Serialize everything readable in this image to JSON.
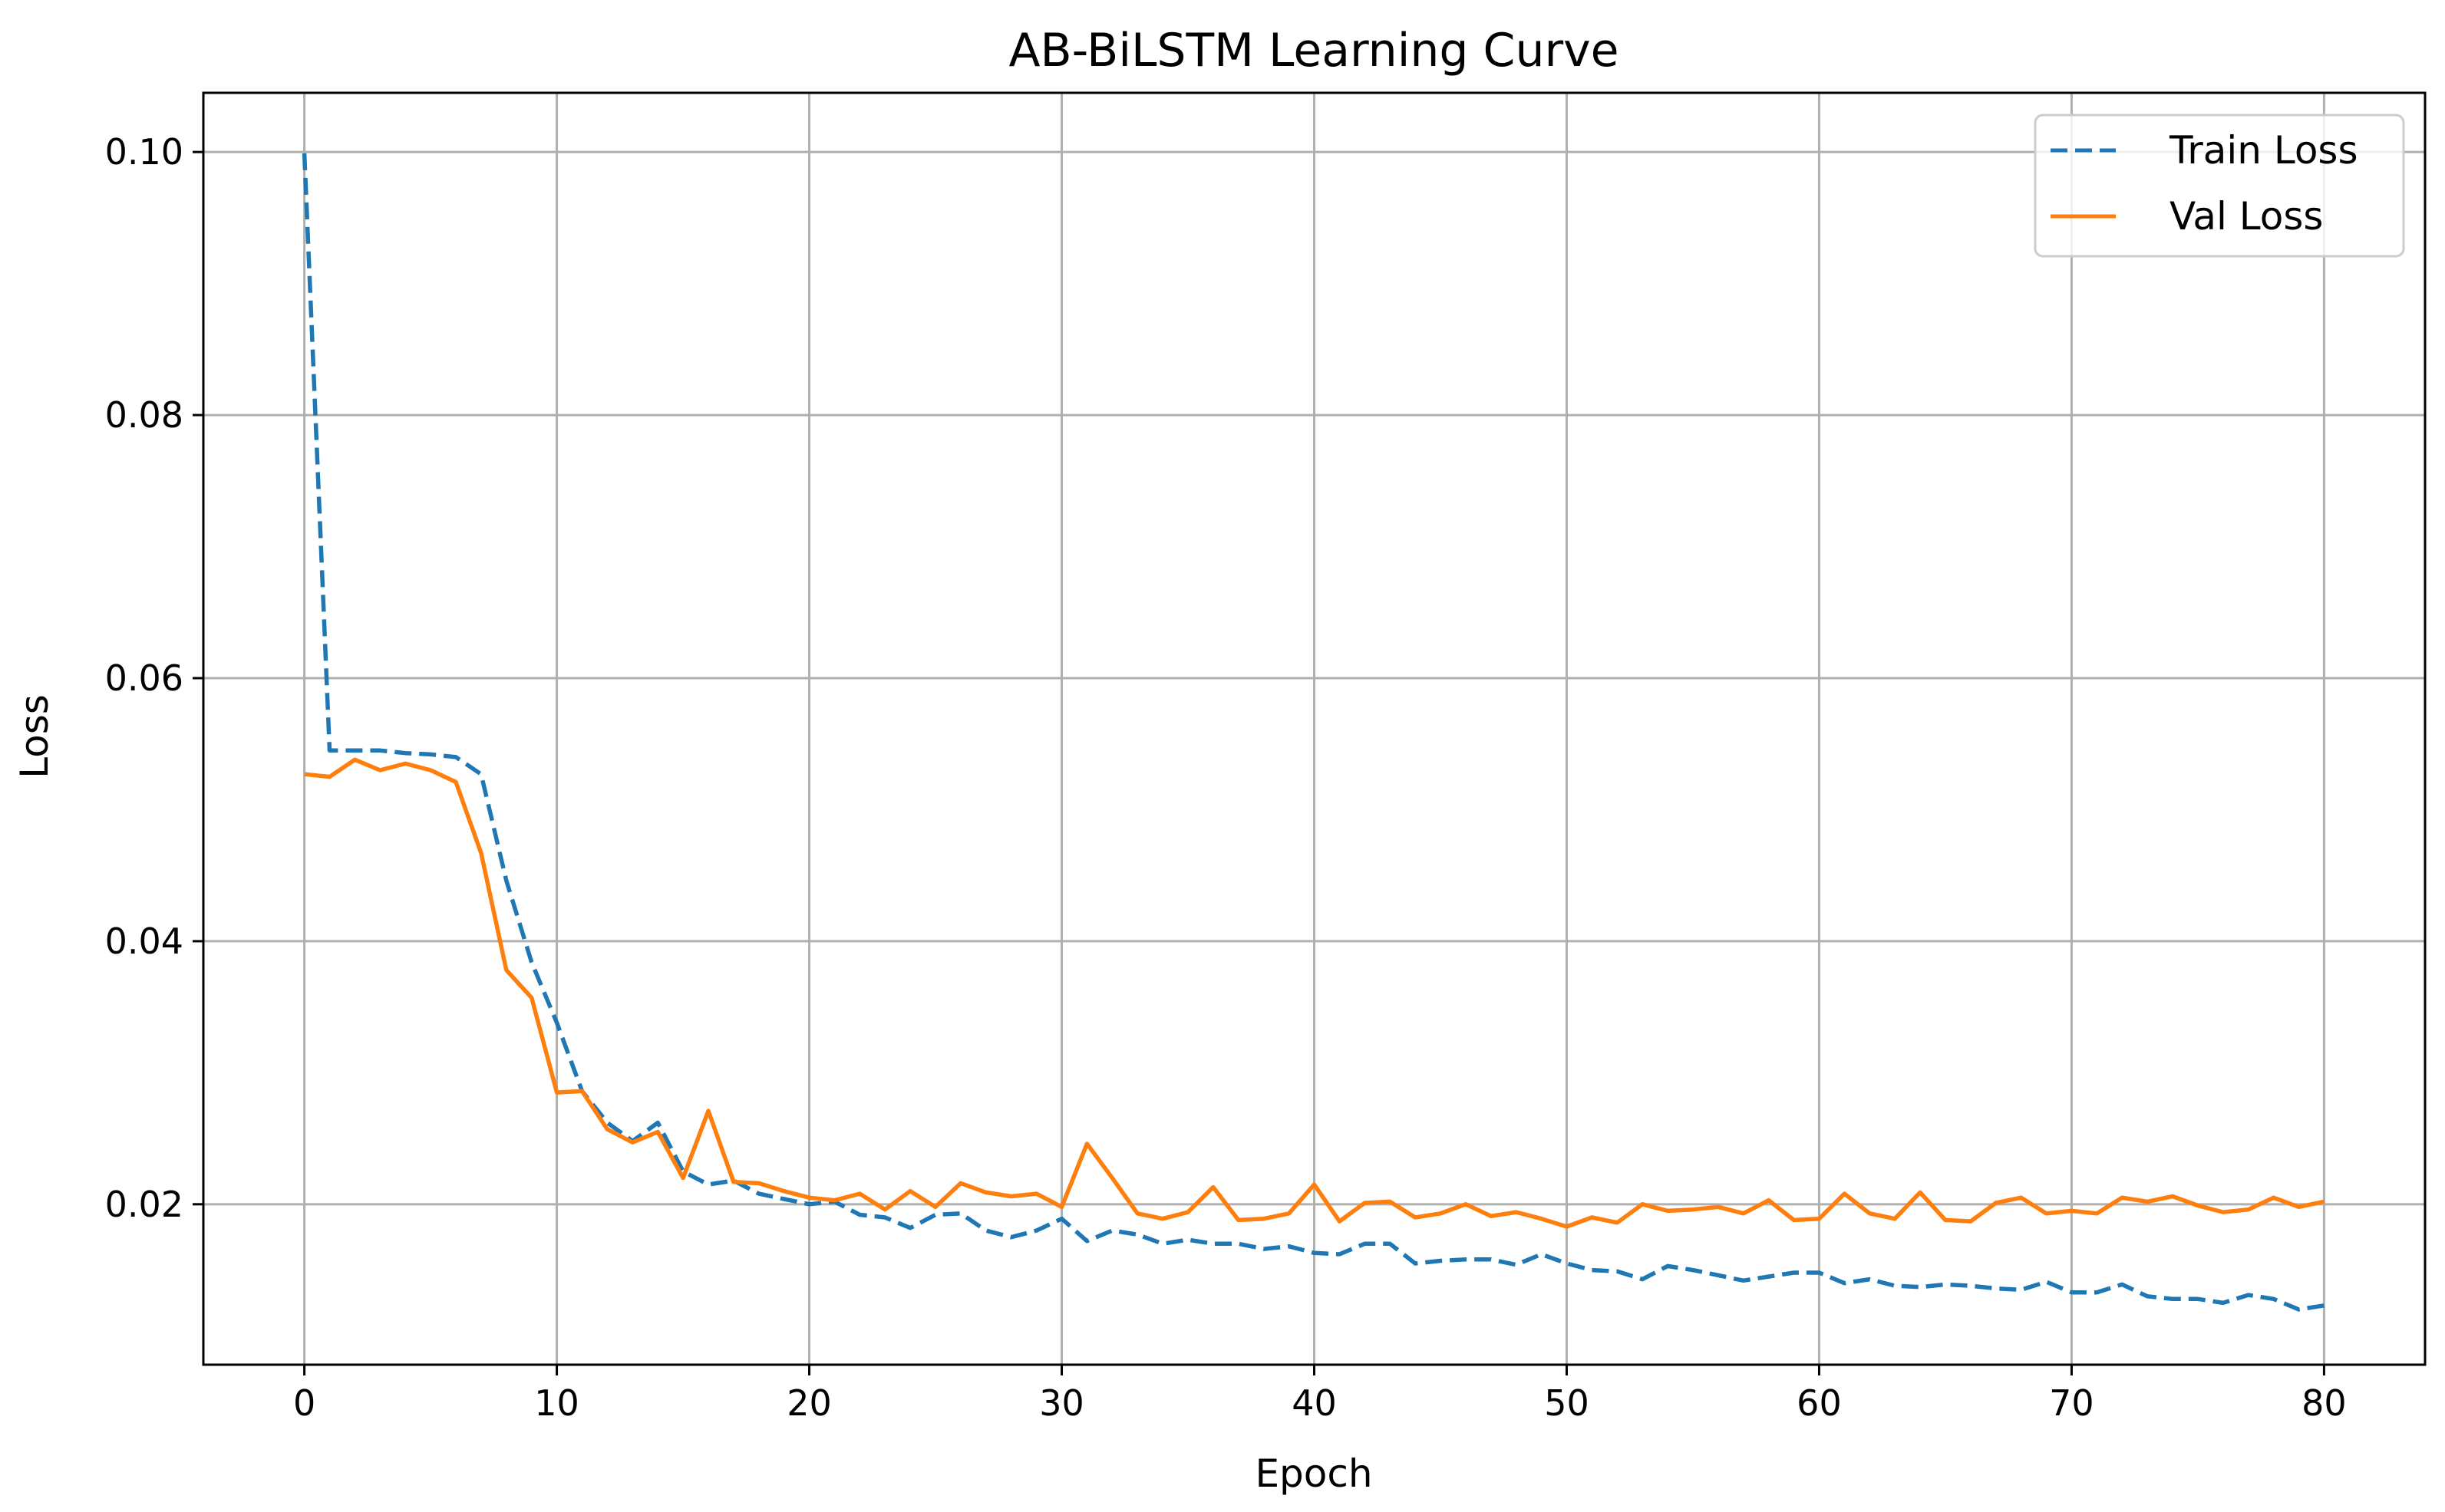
{
  "chart_data": {
    "type": "line",
    "title": "AB-BiLSTM Learning Curve",
    "xlabel": "Epoch",
    "ylabel": "Loss",
    "xlim": [
      -4,
      84
    ],
    "ylim": [
      0.0078,
      0.1045
    ],
    "xticks": [
      0,
      10,
      20,
      30,
      40,
      50,
      60,
      70,
      80
    ],
    "xtick_labels": [
      "0",
      "10",
      "20",
      "30",
      "40",
      "50",
      "60",
      "70",
      "80"
    ],
    "yticks": [
      0.02,
      0.04,
      0.06,
      0.08,
      0.1
    ],
    "ytick_labels": [
      "0.02",
      "0.04",
      "0.06",
      "0.08",
      "0.10"
    ],
    "grid": true,
    "legend_position": "top-right",
    "x": [
      0,
      1,
      2,
      3,
      4,
      5,
      6,
      7,
      8,
      9,
      10,
      11,
      12,
      13,
      14,
      15,
      16,
      17,
      18,
      19,
      20,
      21,
      22,
      23,
      24,
      25,
      26,
      27,
      28,
      29,
      30,
      31,
      32,
      33,
      34,
      35,
      36,
      37,
      38,
      39,
      40,
      41,
      42,
      43,
      44,
      45,
      46,
      47,
      48,
      49,
      50,
      51,
      52,
      53,
      54,
      55,
      56,
      57,
      58,
      59,
      60,
      61,
      62,
      63,
      64,
      65,
      66,
      67,
      68,
      69,
      70,
      71,
      72,
      73,
      74,
      75,
      76,
      77,
      78,
      79,
      80
    ],
    "series": [
      {
        "name": "Train Loss",
        "color": "#1f77b4",
        "style": "dashed",
        "values": [
          0.0999,
          0.0545,
          0.0545,
          0.0545,
          0.0543,
          0.0542,
          0.054,
          0.0527,
          0.0446,
          0.0384,
          0.0338,
          0.0286,
          0.0262,
          0.0248,
          0.0262,
          0.0225,
          0.0215,
          0.0218,
          0.0208,
          0.0204,
          0.02,
          0.0202,
          0.0192,
          0.019,
          0.0182,
          0.0192,
          0.0193,
          0.018,
          0.0175,
          0.018,
          0.0189,
          0.0172,
          0.018,
          0.0177,
          0.017,
          0.0173,
          0.017,
          0.017,
          0.0166,
          0.0168,
          0.0163,
          0.0162,
          0.017,
          0.017,
          0.0155,
          0.0157,
          0.0158,
          0.0158,
          0.0154,
          0.0162,
          0.0155,
          0.015,
          0.0149,
          0.0143,
          0.0153,
          0.015,
          0.0146,
          0.0142,
          0.0145,
          0.0148,
          0.0148,
          0.014,
          0.0143,
          0.0138,
          0.0137,
          0.0139,
          0.0138,
          0.0136,
          0.0135,
          0.0141,
          0.0133,
          0.0133,
          0.0139,
          0.013,
          0.0128,
          0.0128,
          0.0125,
          0.0131,
          0.0128,
          0.012,
          0.0123
        ]
      },
      {
        "name": "Val Loss",
        "color": "#ff7f0e",
        "style": "solid",
        "values": [
          0.0527,
          0.0525,
          0.0538,
          0.053,
          0.0535,
          0.053,
          0.0521,
          0.0467,
          0.0378,
          0.0357,
          0.0285,
          0.0286,
          0.0257,
          0.0247,
          0.0255,
          0.022,
          0.0271,
          0.0217,
          0.0216,
          0.021,
          0.0205,
          0.0203,
          0.0208,
          0.0196,
          0.021,
          0.0198,
          0.0216,
          0.0209,
          0.0206,
          0.0208,
          0.0198,
          0.0246,
          0.022,
          0.0193,
          0.0189,
          0.0194,
          0.0213,
          0.0188,
          0.0189,
          0.0193,
          0.0215,
          0.0187,
          0.0201,
          0.0202,
          0.019,
          0.0193,
          0.02,
          0.0191,
          0.0194,
          0.0189,
          0.0183,
          0.019,
          0.0186,
          0.02,
          0.0195,
          0.0196,
          0.0198,
          0.0193,
          0.0203,
          0.0188,
          0.0189,
          0.0208,
          0.0193,
          0.0189,
          0.0209,
          0.0188,
          0.0187,
          0.0201,
          0.0205,
          0.0193,
          0.0195,
          0.0193,
          0.0205,
          0.0202,
          0.0206,
          0.0199,
          0.0194,
          0.0196,
          0.0205,
          0.0198,
          0.0202
        ]
      }
    ]
  }
}
